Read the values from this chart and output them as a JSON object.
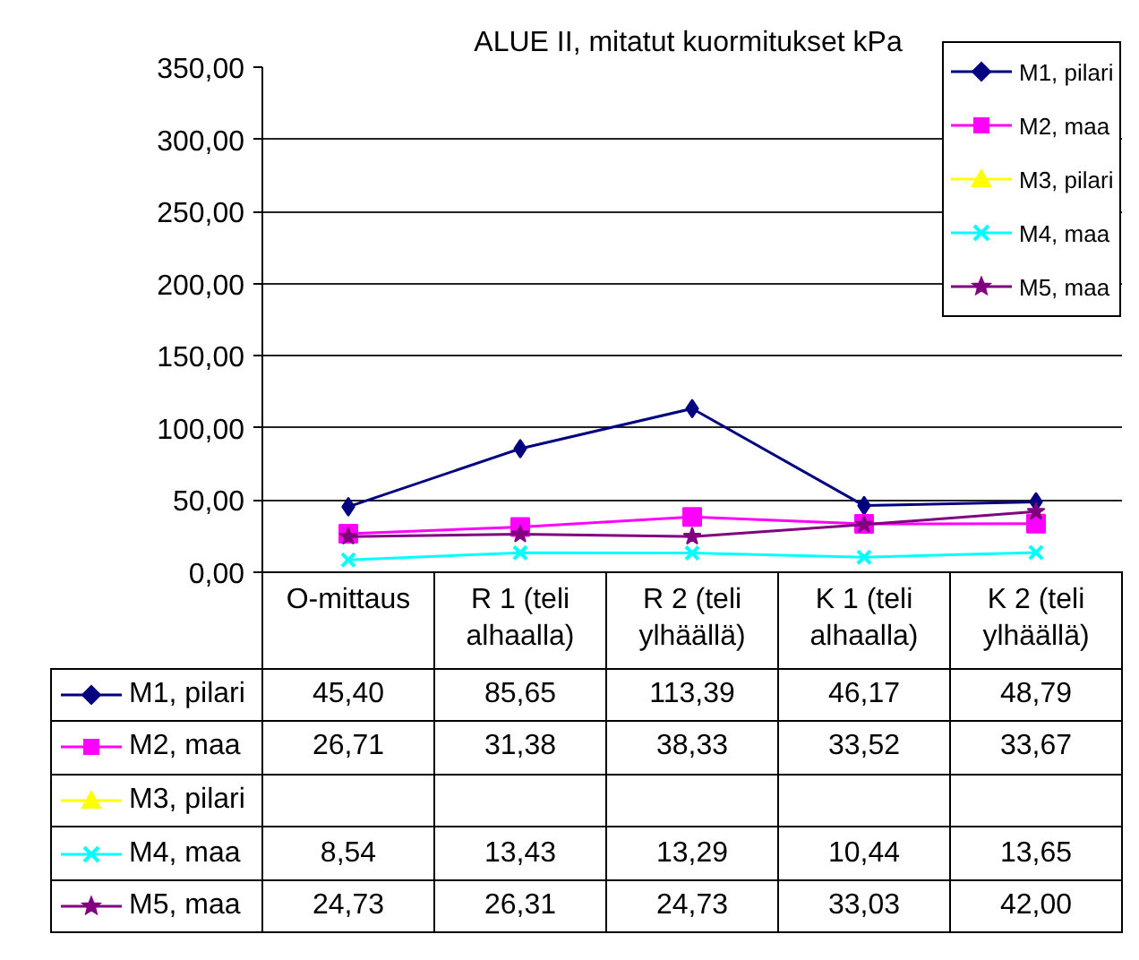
{
  "chart_data": {
    "type": "line",
    "title": "ALUE  II, mitatut kuormitukset kPa",
    "categories": [
      "O-mittaus",
      "R 1 (teli alhaalla)",
      "R 2 (teli ylhäällä)",
      "K 1 (teli alhaalla)",
      "K 2 (teli ylhäällä)"
    ],
    "series": [
      {
        "name": "M1, pilari",
        "color": "#000080",
        "marker": "diamond",
        "values": [
          45.4,
          85.65,
          113.39,
          46.17,
          48.79
        ],
        "value_labels": [
          "45,40",
          "85,65",
          "113,39",
          "46,17",
          "48,79"
        ]
      },
      {
        "name": "M2, maa",
        "color": "#ff00ff",
        "marker": "square",
        "values": [
          26.71,
          31.38,
          38.33,
          33.52,
          33.67
        ],
        "value_labels": [
          "26,71",
          "31,38",
          "38,33",
          "33,52",
          "33,67"
        ]
      },
      {
        "name": "M3, pilari",
        "color": "#ffff00",
        "marker": "triangle",
        "values": [
          null,
          null,
          null,
          null,
          null
        ]
      },
      {
        "name": "M4, maa",
        "color": "#00ffff",
        "marker": "cross",
        "values": [
          8.54,
          13.43,
          13.29,
          10.44,
          13.65
        ],
        "value_labels": [
          "8,54",
          "13,43",
          "13,29",
          "10,44",
          "13,65"
        ]
      },
      {
        "name": "M5, maa",
        "color": "#800080",
        "marker": "star",
        "values": [
          24.73,
          26.31,
          24.73,
          33.03,
          42.0
        ],
        "value_labels": [
          "24,73",
          "26,31",
          "24,73",
          "33,03",
          "42,00"
        ]
      }
    ],
    "ylim": [
      0,
      350
    ],
    "yticks": [
      {
        "value": 0,
        "label": "0,00"
      },
      {
        "value": 50,
        "label": "50,00"
      },
      {
        "value": 100,
        "label": "100,00"
      },
      {
        "value": 150,
        "label": "150,00"
      },
      {
        "value": 200,
        "label": "200,00"
      },
      {
        "value": 250,
        "label": "250,00"
      },
      {
        "value": 300,
        "label": "300,00"
      },
      {
        "value": 350,
        "label": "350,00"
      }
    ],
    "grid": "y",
    "legend": "top right",
    "line_style": "solid"
  }
}
